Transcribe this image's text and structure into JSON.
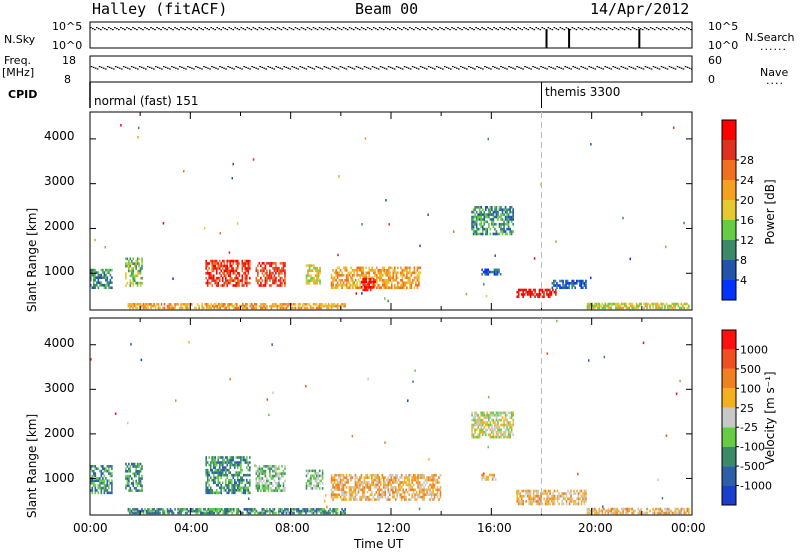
{
  "header": {
    "station": "Halley (fitACF)",
    "beam": "Beam 00",
    "date": "14/Apr/2012"
  },
  "top_panels": {
    "nsky_label": "N.Sky",
    "nsky_ticks": [
      "10^5",
      "10^0"
    ],
    "nsearch_label": "N.Search",
    "nsearch_ticks": [
      "10^5",
      "10^0"
    ],
    "freq_label": "Freq.",
    "freq_unit": "[MHz]",
    "freq_ticks": [
      "18",
      "8"
    ],
    "nave_label": "Nave",
    "nave_ticks": [
      "60",
      "0"
    ],
    "cpid_label": "CPID",
    "cpid_modes": [
      {
        "name": "normal (fast) 151",
        "start_hour": 0
      },
      {
        "name": "themis 3300",
        "start_hour": 18
      }
    ],
    "nsearch_spike_hours": [
      18.2,
      19.1,
      21.9
    ]
  },
  "chart_data": [
    {
      "type": "heatmap",
      "name": "power",
      "ylabel": "Slant Range [km]",
      "xlabel": "Time UT",
      "x_ticks": [
        "00:00",
        "04:00",
        "08:00",
        "12:00",
        "16:00",
        "20:00",
        "00:00"
      ],
      "x_range_hours": [
        0,
        24
      ],
      "y_ticks": [
        "1000",
        "2000",
        "3000",
        "4000"
      ],
      "y_range_km": [
        180,
        4600
      ],
      "colorbar_label": "Power [dB]",
      "colorbar_ticks": [
        "4",
        "8",
        "12",
        "16",
        "20",
        "24",
        "28"
      ],
      "colorbar_colors": [
        "#0033ff",
        "#2255aa",
        "#3a8a6a",
        "#66cc44",
        "#e6c830",
        "#f5a020",
        "#f07020",
        "#e03020",
        "#ff0000"
      ],
      "marker_hour": 18,
      "blobs": [
        {
          "t0": 0.0,
          "t1": 0.9,
          "r0": 650,
          "r1": 1100,
          "level": 2
        },
        {
          "t0": 1.4,
          "t1": 2.1,
          "r0": 700,
          "r1": 1350,
          "level": 3
        },
        {
          "t0": 4.6,
          "t1": 6.4,
          "r0": 700,
          "r1": 1300,
          "level": 7
        },
        {
          "t0": 6.6,
          "t1": 7.8,
          "r0": 700,
          "r1": 1250,
          "level": 7
        },
        {
          "t0": 8.6,
          "t1": 9.2,
          "r0": 750,
          "r1": 1200,
          "level": 4
        },
        {
          "t0": 9.6,
          "t1": 13.2,
          "r0": 650,
          "r1": 1150,
          "level": 5
        },
        {
          "t0": 10.8,
          "t1": 11.4,
          "r0": 600,
          "r1": 900,
          "level": 8
        },
        {
          "t0": 15.2,
          "t1": 16.9,
          "r0": 1850,
          "r1": 2500,
          "level": 2
        },
        {
          "t0": 15.6,
          "t1": 16.4,
          "r0": 950,
          "r1": 1100,
          "level": 1
        },
        {
          "t0": 17.0,
          "t1": 18.6,
          "r0": 450,
          "r1": 650,
          "level": 8
        },
        {
          "t0": 18.4,
          "t1": 19.8,
          "r0": 650,
          "r1": 850,
          "level": 1
        },
        {
          "t0": 1.5,
          "t1": 10.2,
          "r0": 200,
          "r1": 320,
          "level": 5
        },
        {
          "t0": 19.8,
          "t1": 23.9,
          "r0": 200,
          "r1": 330,
          "level": 4
        }
      ]
    },
    {
      "type": "heatmap",
      "name": "velocity",
      "ylabel": "Slant Range [km]",
      "xlabel": "Time UT",
      "x_ticks": [
        "00:00",
        "04:00",
        "08:00",
        "12:00",
        "16:00",
        "20:00",
        "00:00"
      ],
      "x_range_hours": [
        0,
        24
      ],
      "y_ticks": [
        "1000",
        "2000",
        "3000",
        "4000"
      ],
      "y_range_km": [
        180,
        4600
      ],
      "colorbar_label": "Velocity [m s⁻¹]",
      "colorbar_ticks": [
        "1000",
        "500",
        "100",
        "25",
        "-25",
        "-100",
        "-500",
        "-1000"
      ],
      "colorbar_colors": [
        "#1a3fcc",
        "#2d5fa8",
        "#3a8a6a",
        "#66cc44",
        "#c8c8c8",
        "#f5b020",
        "#f08020",
        "#f05020",
        "#ff1010"
      ],
      "marker_hour": 18,
      "blobs": [
        {
          "t0": 0.0,
          "t1": 0.9,
          "r0": 650,
          "r1": 1300,
          "level": 2
        },
        {
          "t0": 1.4,
          "t1": 2.1,
          "r0": 700,
          "r1": 1350,
          "level": 2
        },
        {
          "t0": 4.6,
          "t1": 6.4,
          "r0": 650,
          "r1": 1500,
          "level": 2
        },
        {
          "t0": 6.6,
          "t1": 7.8,
          "r0": 700,
          "r1": 1300,
          "level": 3
        },
        {
          "t0": 8.6,
          "t1": 9.3,
          "r0": 750,
          "r1": 1200,
          "level": 3
        },
        {
          "t0": 9.6,
          "t1": 14.0,
          "r0": 500,
          "r1": 1100,
          "level": 5
        },
        {
          "t0": 15.2,
          "t1": 16.9,
          "r0": 1900,
          "r1": 2500,
          "level": 4
        },
        {
          "t0": 15.6,
          "t1": 16.2,
          "r0": 950,
          "r1": 1100,
          "level": 5
        },
        {
          "t0": 17.0,
          "t1": 19.8,
          "r0": 400,
          "r1": 750,
          "level": 5
        },
        {
          "t0": 1.5,
          "t1": 10.2,
          "r0": 200,
          "r1": 320,
          "level": 2
        },
        {
          "t0": 19.8,
          "t1": 23.9,
          "r0": 200,
          "r1": 330,
          "level": 5
        }
      ]
    }
  ]
}
